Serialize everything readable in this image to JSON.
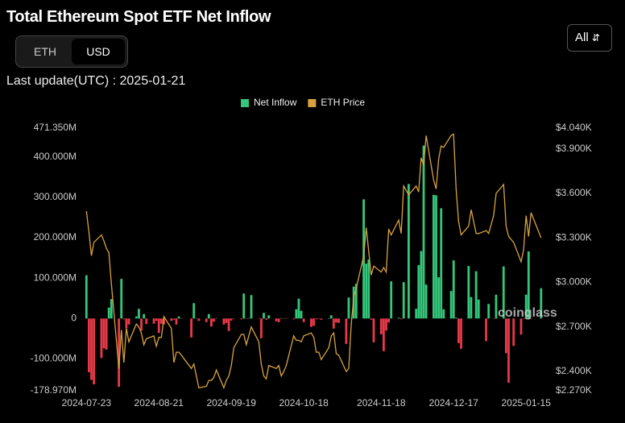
{
  "title": "Total Ethereum Spot ETF Net Inflow",
  "currency_options": [
    "ETH",
    "USD"
  ],
  "range_select": "All",
  "last_update": "Last update(UTC) : 2025-01-21",
  "watermark": "coinglass",
  "chart_data": {
    "type": "bar-line",
    "grid": false,
    "x": [
      "2024-07-23",
      "2024-07-24",
      "2024-07-25",
      "2024-07-26",
      "2024-07-29",
      "2024-07-30",
      "2024-07-31",
      "2024-08-01",
      "2024-08-02",
      "2024-08-05",
      "2024-08-06",
      "2024-08-07",
      "2024-08-08",
      "2024-08-09",
      "2024-08-12",
      "2024-08-13",
      "2024-08-14",
      "2024-08-15",
      "2024-08-16",
      "2024-08-19",
      "2024-08-20",
      "2024-08-21",
      "2024-08-22",
      "2024-08-23",
      "2024-08-26",
      "2024-08-27",
      "2024-08-28",
      "2024-08-29",
      "2024-08-30",
      "2024-09-03",
      "2024-09-04",
      "2024-09-05",
      "2024-09-06",
      "2024-09-09",
      "2024-09-10",
      "2024-09-11",
      "2024-09-12",
      "2024-09-13",
      "2024-09-16",
      "2024-09-17",
      "2024-09-18",
      "2024-09-19",
      "2024-09-20",
      "2024-09-23",
      "2024-09-24",
      "2024-09-25",
      "2024-09-26",
      "2024-09-27",
      "2024-09-30",
      "2024-10-01",
      "2024-10-02",
      "2024-10-03",
      "2024-10-04",
      "2024-10-07",
      "2024-10-08",
      "2024-10-09",
      "2024-10-10",
      "2024-10-11",
      "2024-10-14",
      "2024-10-15",
      "2024-10-16",
      "2024-10-17",
      "2024-10-18",
      "2024-10-21",
      "2024-10-22",
      "2024-10-23",
      "2024-10-24",
      "2024-10-25",
      "2024-10-28",
      "2024-10-29",
      "2024-10-30",
      "2024-10-31",
      "2024-11-01",
      "2024-11-04",
      "2024-11-05",
      "2024-11-06",
      "2024-11-07",
      "2024-11-08",
      "2024-11-11",
      "2024-11-12",
      "2024-11-13",
      "2024-11-14",
      "2024-11-15",
      "2024-11-18",
      "2024-11-19",
      "2024-11-20",
      "2024-11-21",
      "2024-11-22",
      "2024-11-25",
      "2024-11-26",
      "2024-11-27",
      "2024-11-29",
      "2024-12-02",
      "2024-12-03",
      "2024-12-04",
      "2024-12-05",
      "2024-12-06",
      "2024-12-09",
      "2024-12-10",
      "2024-12-11",
      "2024-12-12",
      "2024-12-13",
      "2024-12-16",
      "2024-12-17",
      "2024-12-18",
      "2024-12-19",
      "2024-12-20",
      "2024-12-23",
      "2024-12-24",
      "2024-12-26",
      "2024-12-27",
      "2024-12-30",
      "2024-12-31",
      "2025-01-02",
      "2025-01-03",
      "2025-01-06",
      "2025-01-07",
      "2025-01-08",
      "2025-01-10",
      "2025-01-13",
      "2025-01-14",
      "2025-01-15",
      "2025-01-16",
      "2025-01-17",
      "2025-01-21"
    ],
    "series": [
      {
        "name": "Net Inflow",
        "color": "#34c77b",
        "negative_color": "#e8394a",
        "values": [
          107,
          -133,
          -152,
          -163,
          -98,
          -74,
          -77,
          27,
          48,
          -169,
          98,
          -2,
          -24,
          -15,
          5,
          24,
          -30,
          11,
          -14,
          -13,
          -6,
          -36,
          -13,
          -15,
          -6,
          -3,
          -15,
          5,
          -1,
          -47,
          38,
          -0.2,
          -6,
          -9,
          11,
          -20,
          -8,
          1,
          -15,
          -11,
          -31,
          -5,
          -1,
          -2,
          62,
          -0.1,
          1,
          58,
          -0.9,
          -49,
          14,
          -3,
          8,
          -7,
          -9,
          1,
          -1,
          -0.1,
          -2,
          23,
          49,
          19,
          -9,
          -21,
          -18,
          -2,
          -1,
          -3,
          0,
          8,
          -25,
          -10,
          -11,
          -63,
          52,
          -0.5,
          79,
          86,
          295,
          136,
          146,
          -3,
          -59,
          -39,
          -81,
          -30,
          -10,
          92,
          2,
          -2,
          90,
          333,
          24,
          132,
          167,
          428,
          84,
          306,
          305,
          102,
          273,
          23,
          68,
          144,
          2,
          -61,
          -75,
          130,
          53,
          117,
          47,
          -56,
          36,
          -1,
          59,
          129,
          -86,
          -159,
          -68,
          -40,
          -1,
          59,
          166,
          -0.6,
          75
        ]
      },
      {
        "name": "ETH Price",
        "color": "#d8a33e",
        "axis": "y2",
        "values": [
          3480,
          3340,
          3180,
          3270,
          3320,
          3280,
          3230,
          3200,
          2990,
          2420,
          2680,
          2460,
          2690,
          2600,
          2720,
          2700,
          2660,
          2580,
          2620,
          2640,
          2570,
          2630,
          2630,
          2770,
          2690,
          2460,
          2530,
          2530,
          2510,
          2420,
          2450,
          2370,
          2290,
          2300,
          2340,
          2340,
          2360,
          2410,
          2290,
          2340,
          2370,
          2440,
          2560,
          2650,
          2650,
          2580,
          2640,
          2700,
          2600,
          2450,
          2370,
          2350,
          2440,
          2420,
          2440,
          2370,
          2400,
          2440,
          2640,
          2610,
          2610,
          2600,
          2640,
          2660,
          2630,
          2530,
          2530,
          2480,
          2560,
          2640,
          2660,
          2520,
          2510,
          2400,
          2420,
          2720,
          2900,
          2960,
          3180,
          3370,
          3210,
          3050,
          3110,
          3070,
          3100,
          3070,
          3360,
          3320,
          3420,
          3330,
          3650,
          3590,
          3650,
          3610,
          3840,
          3790,
          3990,
          3690,
          3630,
          3830,
          3920,
          3910,
          3990,
          4000,
          3630,
          3410,
          3320,
          3380,
          3490,
          3330,
          3330,
          3350,
          3330,
          3450,
          3600,
          3660,
          3380,
          3310,
          3270,
          3140,
          3220,
          3450,
          3310,
          3470,
          3300
        ]
      }
    ],
    "xlim": [
      "2024-07-20",
      "2025-01-23"
    ],
    "xticks": [
      "2024-07-23",
      "2024-08-21",
      "2024-09-19",
      "2024-10-18",
      "2024-11-18",
      "2024-12-17",
      "2025-01-15"
    ],
    "ylim": [
      -178.97,
      471.35
    ],
    "yticks": [
      {
        "value": -178.97,
        "label": "-178.970M"
      },
      {
        "value": -100,
        "label": "-100.000M"
      },
      0,
      {
        "value": 100,
        "label": "100.000M"
      },
      {
        "value": 200,
        "label": "200.000M"
      },
      {
        "value": 300,
        "label": "300.000M"
      },
      {
        "value": 400,
        "label": "400.000M"
      },
      {
        "value": 471.35,
        "label": "471.350M"
      }
    ],
    "y2lim": [
      2270,
      4040
    ],
    "y2ticks": [
      {
        "value": 2270,
        "label": "$2.270K"
      },
      {
        "value": 2400,
        "label": "$2.400K"
      },
      {
        "value": 2700,
        "label": "$2.700K"
      },
      {
        "value": 3000,
        "label": "$3.000K"
      },
      {
        "value": 3300,
        "label": "$3.300K"
      },
      {
        "value": 3600,
        "label": "$3.600K"
      },
      {
        "value": 3900,
        "label": "$3.900K"
      },
      {
        "value": 4040,
        "label": "$4.040K"
      }
    ]
  }
}
